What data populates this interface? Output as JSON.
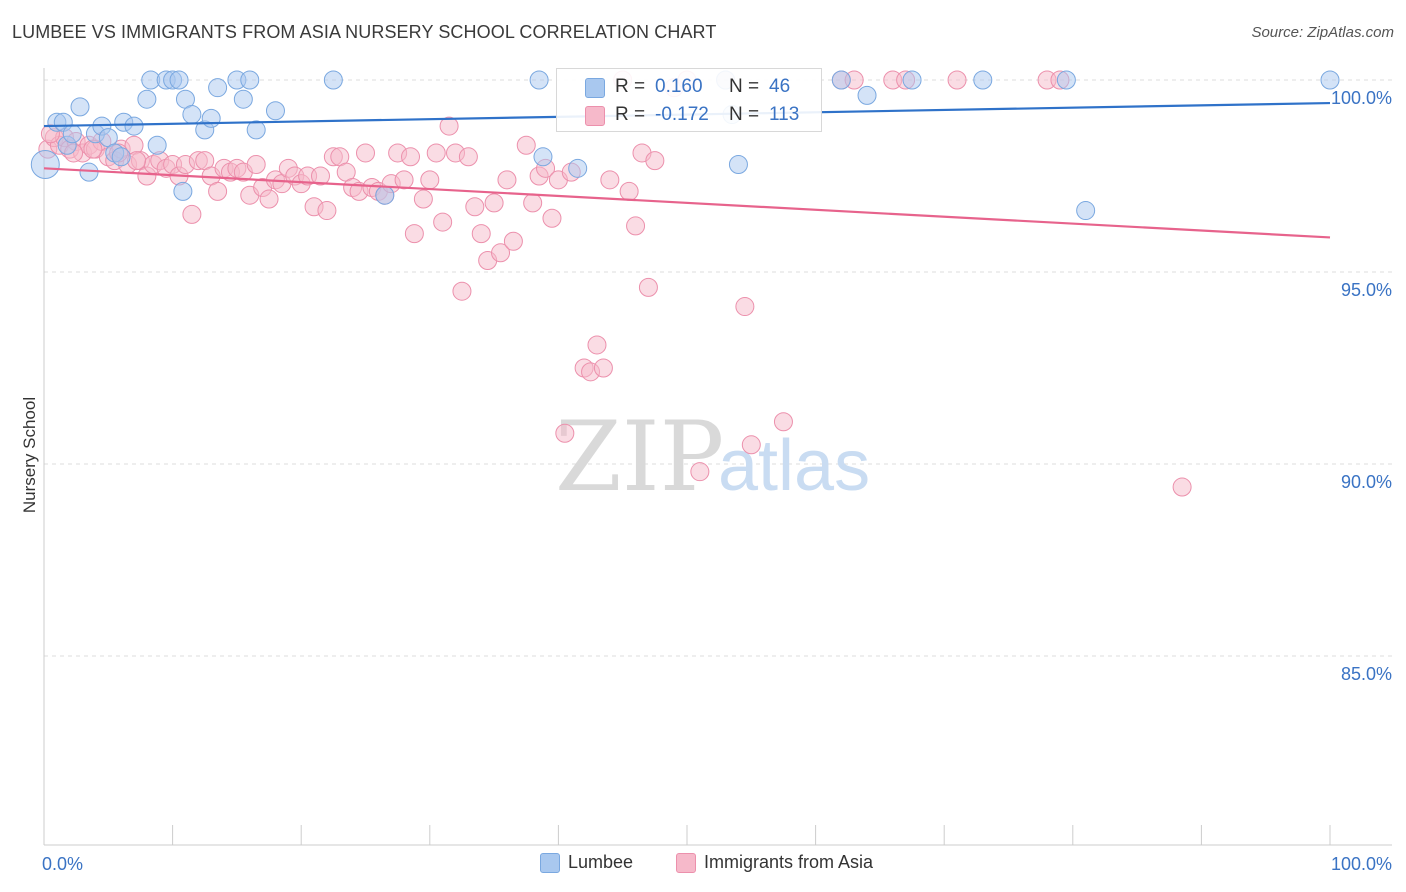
{
  "title": "LUMBEE VS IMMIGRANTS FROM ASIA NURSERY SCHOOL CORRELATION CHART",
  "source": "Source: ZipAtlas.com",
  "watermark": {
    "zip": "ZIP",
    "atlas": "atlas"
  },
  "colors": {
    "blue_fill": "#a9c8ef",
    "blue_stroke": "#7aa8e0",
    "blue_line": "#2f72c9",
    "blue_text": "#3a73c4",
    "pink_fill": "#f6b9ca",
    "pink_stroke": "#ec90ac",
    "pink_line": "#e7638c",
    "pink_text": "#3a73c4",
    "grid": "#dddddd",
    "axis_text": "#3a73c4"
  },
  "legend_top": {
    "rows": [
      {
        "r_label": "R =",
        "r_value": "0.160",
        "n_label": "N =",
        "n_value": "46",
        "color": "blue"
      },
      {
        "r_label": "R =",
        "r_value": "-0.172",
        "n_label": "N =",
        "n_value": "113",
        "color": "pink"
      }
    ]
  },
  "legend_bottom": [
    {
      "label": "Lumbee",
      "color": "blue"
    },
    {
      "label": "Immigrants from Asia",
      "color": "pink"
    }
  ],
  "chart_data": {
    "type": "scatter",
    "title": "LUMBEE VS IMMIGRANTS FROM ASIA NURSERY SCHOOL CORRELATION CHART",
    "xlabel": "",
    "ylabel": "Nursery School",
    "xlim": [
      0,
      100
    ],
    "ylim": [
      80.0,
      100.8
    ],
    "x_tick_labels": {
      "left": "0.0%",
      "right": "100.0%"
    },
    "y_ticks": [
      {
        "value": 100,
        "label": "100.0%"
      },
      {
        "value": 95,
        "label": "95.0%"
      },
      {
        "value": 90,
        "label": "90.0%"
      },
      {
        "value": 85,
        "label": "85.0%"
      }
    ],
    "grid": "horizontal dashed",
    "legend": "top-center and bottom",
    "series": [
      {
        "name": "Lumbee",
        "color": "blue",
        "trend": {
          "x": [
            0,
            100
          ],
          "y": [
            98.8,
            99.4
          ]
        },
        "points": [
          [
            0.1,
            97.8
          ],
          [
            1.0,
            98.9
          ],
          [
            1.5,
            98.9
          ],
          [
            1.8,
            98.3
          ],
          [
            2.2,
            98.6
          ],
          [
            2.8,
            99.3
          ],
          [
            3.5,
            97.6
          ],
          [
            4.0,
            98.6
          ],
          [
            4.5,
            98.8
          ],
          [
            5.0,
            98.5
          ],
          [
            5.5,
            98.1
          ],
          [
            6.0,
            98.0
          ],
          [
            6.2,
            98.9
          ],
          [
            7.0,
            98.8
          ],
          [
            8.0,
            99.5
          ],
          [
            8.3,
            100.0
          ],
          [
            8.8,
            98.3
          ],
          [
            9.5,
            100.0
          ],
          [
            10.0,
            100.0
          ],
          [
            10.5,
            100.0
          ],
          [
            10.8,
            97.1
          ],
          [
            11.0,
            99.5
          ],
          [
            11.5,
            99.1
          ],
          [
            12.5,
            98.7
          ],
          [
            13.0,
            99.0
          ],
          [
            13.5,
            99.8
          ],
          [
            15.0,
            100.0
          ],
          [
            15.5,
            99.5
          ],
          [
            16.0,
            100.0
          ],
          [
            16.5,
            98.7
          ],
          [
            18.0,
            99.2
          ],
          [
            22.5,
            100.0
          ],
          [
            26.5,
            97.0
          ],
          [
            38.5,
            100.0
          ],
          [
            38.8,
            98.0
          ],
          [
            41.5,
            97.7
          ],
          [
            53.5,
            99.1
          ],
          [
            54.0,
            97.8
          ],
          [
            62.0,
            100.0
          ],
          [
            64.0,
            99.6
          ],
          [
            67.5,
            100.0
          ],
          [
            73.0,
            100.0
          ],
          [
            79.5,
            100.0
          ],
          [
            81.0,
            96.6
          ],
          [
            100.0,
            100.0
          ],
          [
            53.0,
            100.0
          ]
        ]
      },
      {
        "name": "Immigrants from Asia",
        "color": "pink",
        "trend": {
          "x": [
            0,
            100
          ],
          "y": [
            97.7,
            95.9
          ]
        },
        "points": [
          [
            0.3,
            98.2
          ],
          [
            0.8,
            98.5
          ],
          [
            1.2,
            98.3
          ],
          [
            1.6,
            98.5
          ],
          [
            2.0,
            98.2
          ],
          [
            2.5,
            98.4
          ],
          [
            3.0,
            98.1
          ],
          [
            3.5,
            98.3
          ],
          [
            4.0,
            98.2
          ],
          [
            4.5,
            98.4
          ],
          [
            5.0,
            98.0
          ],
          [
            5.5,
            97.9
          ],
          [
            6.0,
            98.2
          ],
          [
            6.5,
            97.8
          ],
          [
            7.0,
            98.3
          ],
          [
            7.5,
            97.9
          ],
          [
            8.0,
            97.5
          ],
          [
            8.5,
            97.8
          ],
          [
            9.0,
            97.9
          ],
          [
            9.5,
            97.7
          ],
          [
            10.0,
            97.8
          ],
          [
            10.5,
            97.5
          ],
          [
            11.0,
            97.8
          ],
          [
            11.5,
            96.5
          ],
          [
            12.0,
            97.9
          ],
          [
            12.5,
            97.9
          ],
          [
            13.0,
            97.5
          ],
          [
            13.5,
            97.1
          ],
          [
            14.0,
            97.7
          ],
          [
            14.5,
            97.6
          ],
          [
            15.0,
            97.7
          ],
          [
            15.5,
            97.6
          ],
          [
            16.0,
            97.0
          ],
          [
            16.5,
            97.8
          ],
          [
            17.0,
            97.2
          ],
          [
            17.5,
            96.9
          ],
          [
            18.0,
            97.4
          ],
          [
            18.5,
            97.3
          ],
          [
            19.0,
            97.7
          ],
          [
            19.5,
            97.5
          ],
          [
            20.0,
            97.3
          ],
          [
            20.5,
            97.5
          ],
          [
            21.0,
            96.7
          ],
          [
            21.5,
            97.5
          ],
          [
            22.0,
            96.6
          ],
          [
            22.5,
            98.0
          ],
          [
            23.0,
            98.0
          ],
          [
            23.5,
            97.6
          ],
          [
            24.0,
            97.2
          ],
          [
            24.5,
            97.1
          ],
          [
            25.0,
            98.1
          ],
          [
            25.5,
            97.2
          ],
          [
            26.0,
            97.1
          ],
          [
            26.5,
            97.0
          ],
          [
            27.0,
            97.3
          ],
          [
            27.5,
            98.1
          ],
          [
            28.0,
            97.4
          ],
          [
            28.5,
            98.0
          ],
          [
            28.8,
            96.0
          ],
          [
            29.5,
            96.9
          ],
          [
            30.0,
            97.4
          ],
          [
            30.5,
            98.1
          ],
          [
            31.0,
            96.3
          ],
          [
            31.5,
            98.8
          ],
          [
            32.0,
            98.1
          ],
          [
            32.5,
            94.5
          ],
          [
            33.0,
            98.0
          ],
          [
            33.5,
            96.7
          ],
          [
            34.0,
            96.0
          ],
          [
            34.5,
            95.3
          ],
          [
            35.0,
            96.8
          ],
          [
            35.5,
            95.5
          ],
          [
            36.0,
            97.4
          ],
          [
            36.5,
            95.8
          ],
          [
            37.5,
            98.3
          ],
          [
            38.0,
            96.8
          ],
          [
            38.5,
            97.5
          ],
          [
            39.0,
            97.7
          ],
          [
            39.5,
            96.4
          ],
          [
            40.0,
            97.4
          ],
          [
            40.5,
            90.8
          ],
          [
            41.0,
            97.6
          ],
          [
            42.0,
            92.5
          ],
          [
            42.5,
            92.4
          ],
          [
            43.0,
            93.1
          ],
          [
            43.5,
            92.5
          ],
          [
            44.0,
            97.4
          ],
          [
            45.0,
            100.0
          ],
          [
            45.5,
            97.1
          ],
          [
            46.0,
            96.2
          ],
          [
            46.5,
            98.1
          ],
          [
            47.0,
            94.6
          ],
          [
            47.5,
            97.9
          ],
          [
            49.0,
            99.8
          ],
          [
            50.0,
            100.0
          ],
          [
            51.0,
            89.8
          ],
          [
            53.0,
            100.0
          ],
          [
            54.5,
            94.1
          ],
          [
            55.0,
            90.5
          ],
          [
            57.5,
            91.1
          ],
          [
            62.0,
            100.0
          ],
          [
            63.0,
            100.0
          ],
          [
            66.0,
            100.0
          ],
          [
            67.0,
            100.0
          ],
          [
            71.0,
            100.0
          ],
          [
            78.0,
            100.0
          ],
          [
            79.0,
            100.0
          ],
          [
            88.5,
            89.4
          ],
          [
            0.5,
            98.6
          ],
          [
            2.3,
            98.1
          ],
          [
            3.8,
            98.2
          ],
          [
            5.8,
            98.1
          ],
          [
            7.2,
            97.9
          ]
        ]
      }
    ]
  }
}
